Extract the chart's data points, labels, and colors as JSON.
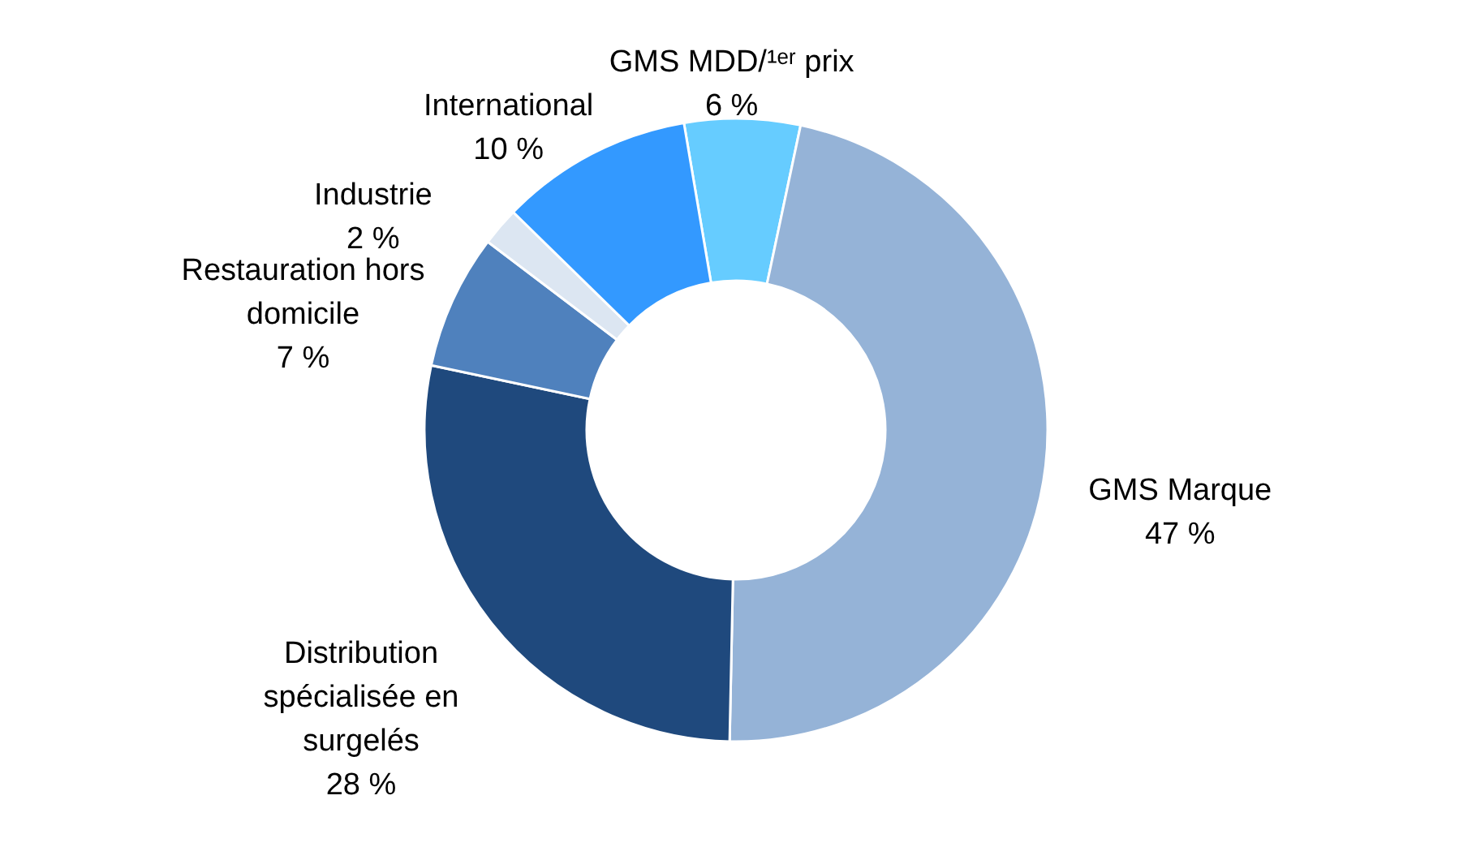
{
  "chart_data": {
    "type": "donut",
    "categories": [
      "GMS MDD/¹ᵉʳ prix",
      "GMS Marque",
      "Distribution spécialisée en surgelés",
      "Restauration hors domicile",
      "Industrie",
      "International"
    ],
    "values": [
      6,
      47,
      28,
      7,
      2,
      10
    ],
    "colors": [
      "#66ccff",
      "#95b3d7",
      "#1f497d",
      "#4f81bd",
      "#dce6f2",
      "#3399ff"
    ],
    "value_labels": [
      "6 %",
      "47 %",
      "28 %",
      "7 %",
      "2 %",
      "10 %"
    ]
  }
}
